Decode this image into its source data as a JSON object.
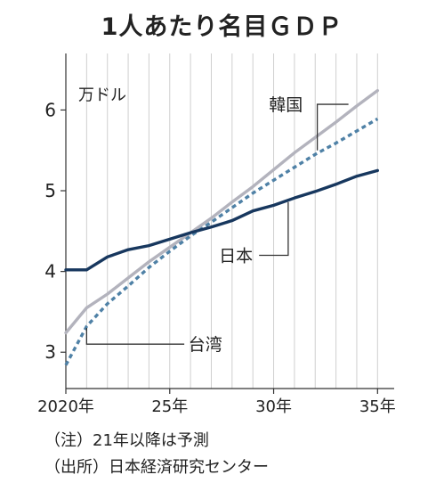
{
  "chart_data": {
    "type": "line",
    "title": "1人あたり名目ＧＤＰ",
    "unit_label": "万ドル",
    "x": [
      2020,
      2021,
      2022,
      2023,
      2024,
      2025,
      2026,
      2027,
      2028,
      2029,
      2030,
      2031,
      2032,
      2033,
      2034,
      2035
    ],
    "x_ticks": [
      2020,
      2025,
      2030,
      2035
    ],
    "x_tick_labels": [
      "2020年",
      "25年",
      "30年",
      "35年"
    ],
    "y_ticks": [
      3,
      4,
      5,
      6
    ],
    "ylim": [
      2.55,
      6.7
    ],
    "xlim": [
      2020,
      2035.8
    ],
    "grid": "vertical",
    "series": [
      {
        "name": "韓国",
        "color": "#b3b3bd",
        "values": [
          3.24,
          3.55,
          3.72,
          3.92,
          4.12,
          4.3,
          4.48,
          4.66,
          4.86,
          5.05,
          5.26,
          5.47,
          5.66,
          5.85,
          6.05,
          6.24
        ]
      },
      {
        "name": "台湾",
        "color": "#4f81a6",
        "dashed": true,
        "values": [
          2.84,
          3.32,
          3.6,
          3.82,
          4.05,
          4.25,
          4.44,
          4.61,
          4.79,
          4.97,
          5.13,
          5.29,
          5.45,
          5.59,
          5.74,
          5.89
        ]
      },
      {
        "name": "日本",
        "color": "#17375e",
        "values": [
          4.02,
          4.02,
          4.18,
          4.27,
          4.32,
          4.4,
          4.48,
          4.55,
          4.63,
          4.75,
          4.82,
          4.91,
          4.99,
          5.08,
          5.18,
          5.25
        ]
      }
    ],
    "notes": [
      "（注）21年以降は予測",
      "（出所）日本経済研究センター"
    ]
  }
}
